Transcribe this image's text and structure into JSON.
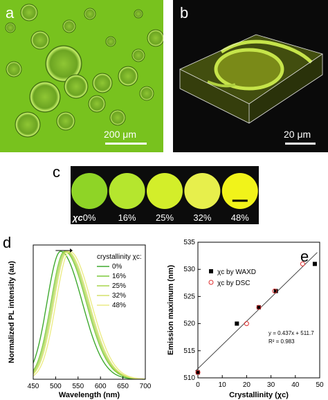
{
  "panels": {
    "a": {
      "label": "a",
      "scale_text": "200 μm"
    },
    "b": {
      "label": "b",
      "scale_text": "20 μm"
    },
    "c": {
      "label": "c",
      "chi_label": "χc",
      "samples": [
        "0%",
        "16%",
        "25%",
        "32%",
        "48%"
      ],
      "colors": [
        "#8fd426",
        "#b5e62e",
        "#d3ee2a",
        "#e7ef4c",
        "#f1f31a"
      ]
    }
  },
  "chart_data": [
    {
      "type": "line",
      "panel_label": "d",
      "xlabel": "Wavelength (nm)",
      "ylabel": "Normalized PL intensity (au)",
      "xlim": [
        450,
        700
      ],
      "xticks": [
        450,
        500,
        550,
        600,
        650,
        700
      ],
      "ylim": [
        0,
        1.05
      ],
      "legend_title": "crystallinity χc:",
      "legend_position": "top-right",
      "series": [
        {
          "name": "0%",
          "peak": 511,
          "color": "#3ea92e"
        },
        {
          "name": "16%",
          "peak": 520,
          "color": "#7cc83a"
        },
        {
          "name": "25%",
          "peak": 523,
          "color": "#a9d64c"
        },
        {
          "name": "32%",
          "peak": 526,
          "color": "#d3e06a"
        },
        {
          "name": "48%",
          "peak": 531,
          "color": "#ecec86"
        }
      ]
    },
    {
      "type": "scatter",
      "panel_label": "e",
      "xlabel": "Crystallinity (χc)",
      "ylabel": "Emission maximum (nm)",
      "xlim": [
        0,
        50
      ],
      "ylim": [
        510,
        535
      ],
      "xticks": [
        0,
        10,
        20,
        30,
        40,
        50
      ],
      "yticks": [
        510,
        515,
        520,
        525,
        530,
        535
      ],
      "series": [
        {
          "name": "χc by WAXD",
          "marker": "filled-square",
          "color": "#000000",
          "x": [
            0,
            16,
            25,
            32,
            48
          ],
          "y": [
            511,
            520,
            523,
            526,
            531
          ]
        },
        {
          "name": "χc by DSC",
          "marker": "open-circle",
          "color": "#e03030",
          "x": [
            0,
            20,
            25,
            31.5,
            43
          ],
          "y": [
            511,
            520,
            523,
            526,
            531
          ]
        }
      ],
      "fit": {
        "slope": 0.437,
        "intercept": 511.7,
        "equation": "y = 0.437x + 511.7",
        "r2": "R² = 0.983"
      },
      "legend_position": "top-left"
    }
  ]
}
